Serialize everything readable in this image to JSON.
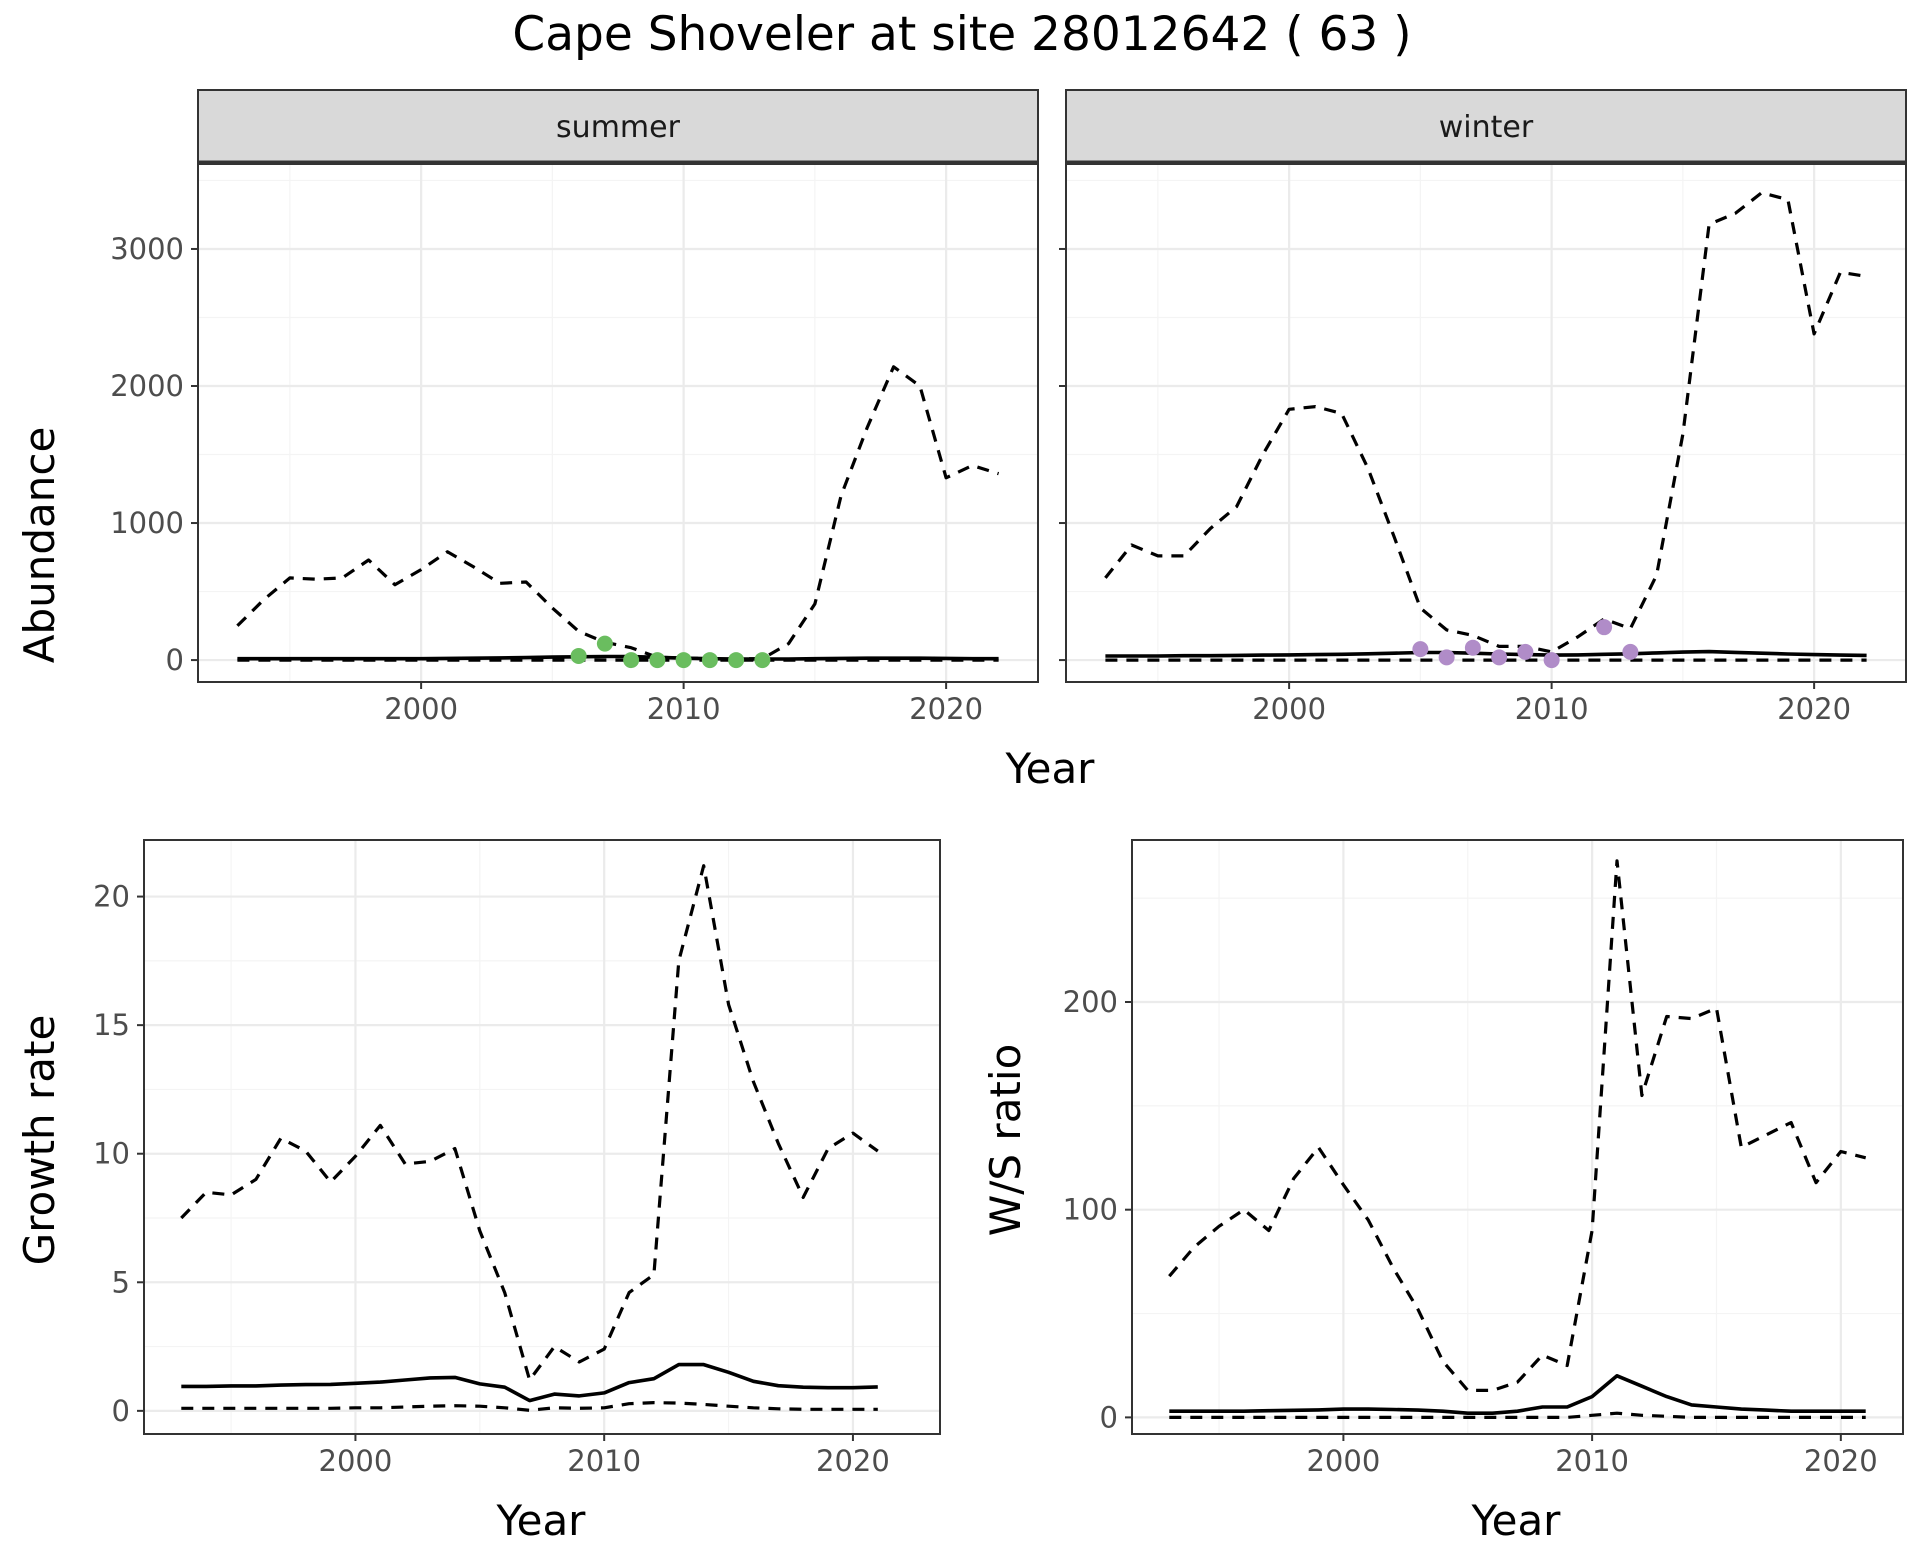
{
  "title": "Cape Shoveler at site 28012642 ( 63 )",
  "colors": {
    "summer_points": "#6abd5f",
    "winter_points": "#b08cc8",
    "lines": "#000000",
    "strip_fill": "#d9d9d9"
  },
  "chart_data": [
    {
      "type": "line",
      "facet": "summer",
      "xlabel": "Year",
      "ylabel": "Abundance",
      "xlim": [
        1991.5,
        2023.5
      ],
      "ylim": [
        -160,
        3620
      ],
      "xticks": [
        2000,
        2010,
        2020
      ],
      "yticks": [
        0,
        1000,
        2000,
        3000
      ],
      "grid": true,
      "x": [
        1993,
        1994,
        1995,
        1996,
        1997,
        1998,
        1999,
        2000,
        2001,
        2002,
        2003,
        2004,
        2005,
        2006,
        2007,
        2008,
        2009,
        2010,
        2011,
        2012,
        2013,
        2014,
        2015,
        2016,
        2017,
        2018,
        2019,
        2020,
        2021,
        2022
      ],
      "series": [
        {
          "style": "solid",
          "values": [
            10,
            10,
            10,
            10,
            10,
            10,
            10,
            10,
            12,
            14,
            16,
            18,
            22,
            24,
            26,
            26,
            20,
            14,
            10,
            8,
            8,
            8,
            10,
            12,
            14,
            14,
            14,
            12,
            10,
            10
          ]
        },
        {
          "style": "dashed",
          "values": [
            250,
            440,
            600,
            590,
            600,
            730,
            550,
            660,
            790,
            680,
            560,
            570,
            380,
            210,
            130,
            90,
            20,
            15,
            10,
            10,
            10,
            120,
            410,
            1200,
            1700,
            2140,
            2000,
            1330,
            1420,
            1360
          ]
        },
        {
          "style": "dashed",
          "values": [
            0,
            0,
            0,
            0,
            0,
            0,
            0,
            0,
            0,
            0,
            0,
            0,
            0,
            0,
            0,
            0,
            0,
            0,
            0,
            0,
            0,
            0,
            0,
            0,
            0,
            0,
            0,
            0,
            0,
            0
          ]
        }
      ],
      "points": {
        "x": [
          2006,
          2007,
          2008,
          2009,
          2010,
          2011,
          2012,
          2013
        ],
        "y": [
          30,
          120,
          0,
          0,
          0,
          0,
          0,
          0
        ]
      }
    },
    {
      "type": "line",
      "facet": "winter",
      "xlabel": "Year",
      "ylabel": "Abundance",
      "xlim": [
        1991.5,
        2023.5
      ],
      "ylim": [
        -160,
        3620
      ],
      "xticks": [
        2000,
        2010,
        2020
      ],
      "yticks": [
        0,
        1000,
        2000,
        3000
      ],
      "grid": true,
      "x": [
        1993,
        1994,
        1995,
        1996,
        1997,
        1998,
        1999,
        2000,
        2001,
        2002,
        2003,
        2004,
        2005,
        2006,
        2007,
        2008,
        2009,
        2010,
        2011,
        2012,
        2013,
        2014,
        2015,
        2016,
        2017,
        2018,
        2019,
        2020,
        2021,
        2022
      ],
      "series": [
        {
          "style": "solid",
          "values": [
            30,
            30,
            30,
            32,
            32,
            34,
            36,
            38,
            40,
            42,
            46,
            50,
            55,
            55,
            50,
            44,
            40,
            36,
            38,
            42,
            46,
            52,
            58,
            62,
            56,
            50,
            44,
            40,
            36,
            34
          ]
        },
        {
          "style": "dashed",
          "values": [
            600,
            840,
            760,
            760,
            960,
            1120,
            1500,
            1830,
            1850,
            1800,
            1400,
            900,
            380,
            220,
            180,
            100,
            100,
            60,
            170,
            300,
            230,
            620,
            1650,
            3180,
            3260,
            3410,
            3360,
            2380,
            2830,
            2800
          ]
        },
        {
          "style": "dashed",
          "values": [
            0,
            0,
            0,
            0,
            0,
            0,
            0,
            0,
            0,
            0,
            0,
            0,
            0,
            0,
            0,
            0,
            0,
            0,
            0,
            0,
            0,
            0,
            0,
            0,
            0,
            0,
            0,
            0,
            0,
            0
          ]
        }
      ],
      "points": {
        "x": [
          2005,
          2006,
          2007,
          2008,
          2009,
          2010,
          2012,
          2013
        ],
        "y": [
          80,
          20,
          90,
          20,
          60,
          0,
          240,
          60
        ]
      }
    },
    {
      "type": "line",
      "xlabel": "Year",
      "ylabel": "Growth rate",
      "xlim": [
        1991.5,
        2023.5
      ],
      "ylim": [
        -0.9,
        22.2
      ],
      "xticks": [
        2000,
        2010,
        2020
      ],
      "yticks": [
        0,
        5,
        10,
        15,
        20
      ],
      "grid": true,
      "x": [
        1993,
        1994,
        1995,
        1996,
        1997,
        1998,
        1999,
        2000,
        2001,
        2002,
        2003,
        2004,
        2005,
        2006,
        2007,
        2008,
        2009,
        2010,
        2011,
        2012,
        2013,
        2014,
        2015,
        2016,
        2017,
        2018,
        2019,
        2020,
        2021
      ],
      "series": [
        {
          "style": "solid",
          "values": [
            0.95,
            0.95,
            0.97,
            0.97,
            1.0,
            1.02,
            1.03,
            1.07,
            1.12,
            1.2,
            1.28,
            1.3,
            1.05,
            0.92,
            0.4,
            0.65,
            0.58,
            0.7,
            1.1,
            1.25,
            1.8,
            1.8,
            1.5,
            1.15,
            0.98,
            0.92,
            0.9,
            0.9,
            0.93
          ]
        },
        {
          "style": "dashed",
          "values": [
            7.5,
            8.5,
            8.4,
            9.0,
            10.6,
            10.1,
            8.9,
            9.9,
            11.1,
            9.6,
            9.7,
            10.2,
            7.0,
            4.6,
            1.2,
            2.5,
            1.9,
            2.4,
            4.6,
            5.3,
            17.5,
            21.2,
            15.8,
            12.8,
            10.4,
            8.3,
            10.2,
            10.8,
            10.1
          ]
        },
        {
          "style": "dashed",
          "values": [
            0.1,
            0.1,
            0.1,
            0.1,
            0.1,
            0.1,
            0.1,
            0.12,
            0.12,
            0.15,
            0.18,
            0.2,
            0.18,
            0.12,
            0.02,
            0.12,
            0.1,
            0.12,
            0.28,
            0.32,
            0.3,
            0.25,
            0.18,
            0.12,
            0.08,
            0.06,
            0.06,
            0.06,
            0.06
          ]
        }
      ]
    },
    {
      "type": "line",
      "xlabel": "Year",
      "ylabel": "W/S ratio",
      "xlim": [
        1991.5,
        2022.5
      ],
      "ylim": [
        -8,
        278
      ],
      "xticks": [
        2000,
        2010,
        2020
      ],
      "yticks": [
        0,
        100,
        200
      ],
      "grid": true,
      "x": [
        1993,
        1994,
        1995,
        1996,
        1997,
        1998,
        1999,
        2000,
        2001,
        2002,
        2003,
        2004,
        2005,
        2006,
        2007,
        2008,
        2009,
        2010,
        2011,
        2012,
        2013,
        2014,
        2015,
        2016,
        2017,
        2018,
        2019,
        2020,
        2021
      ],
      "series": [
        {
          "style": "solid",
          "values": [
            3,
            3,
            3,
            3,
            3.2,
            3.4,
            3.6,
            4,
            4,
            3.8,
            3.5,
            3,
            2,
            2,
            3,
            5,
            5,
            10,
            20,
            15,
            10,
            6,
            5,
            4,
            3.5,
            3,
            3,
            3,
            3
          ]
        },
        {
          "style": "dashed",
          "values": [
            68,
            82,
            92,
            100,
            90,
            115,
            130,
            112,
            95,
            72,
            52,
            27,
            13,
            13,
            17,
            30,
            25,
            90,
            268,
            155,
            193,
            192,
            197,
            130,
            136,
            142,
            113,
            128,
            125
          ]
        },
        {
          "style": "dashed",
          "values": [
            0,
            0,
            0,
            0,
            0,
            0,
            0,
            0,
            0,
            0,
            0,
            0,
            0,
            0,
            0,
            0,
            0,
            1,
            2,
            1,
            0.5,
            0,
            0,
            0,
            0,
            0,
            0,
            0,
            0
          ]
        }
      ]
    }
  ]
}
